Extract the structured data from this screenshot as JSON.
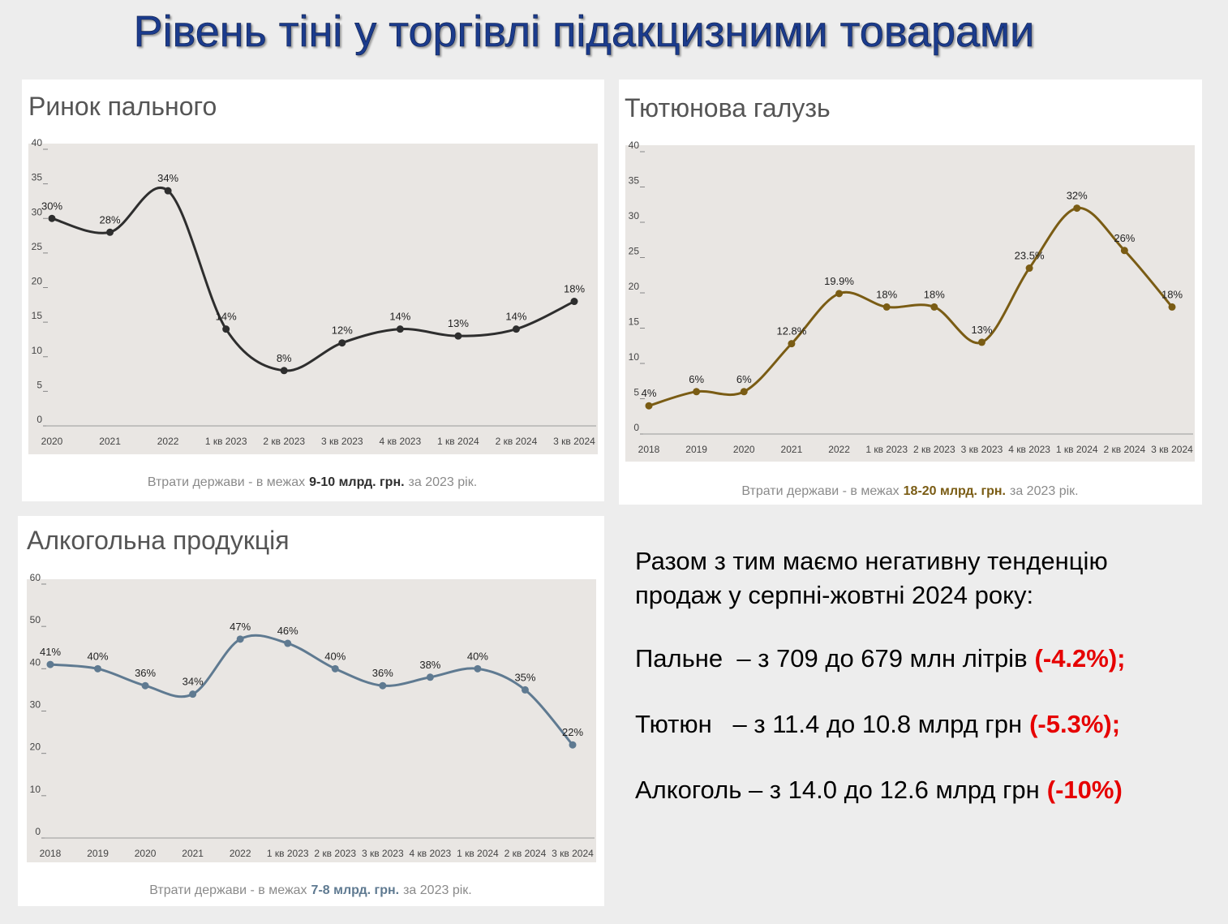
{
  "title": "Рівень тіні у торгівлі підакцизними товарами",
  "chart_data": [
    {
      "type": "line",
      "title": "Ринок пального",
      "categories": [
        "2020",
        "2021",
        "2022",
        "1 кв 2023",
        "2 кв 2023",
        "3 кв 2023",
        "4 кв 2023",
        "1 кв 2024",
        "2 кв 2024",
        "3 кв 2024"
      ],
      "values": [
        30,
        28,
        34,
        14,
        8,
        12,
        14,
        13,
        14,
        18
      ],
      "value_labels": [
        "30%",
        "28%",
        "34%",
        "14%",
        "8%",
        "12%",
        "14%",
        "13%",
        "14%",
        "18%"
      ],
      "color": "#2e2e2e",
      "ylim": [
        0,
        40
      ],
      "yticks": [
        0,
        5,
        10,
        15,
        20,
        25,
        30,
        35,
        40
      ],
      "caption": {
        "prefix": "Втрати держави - в межах",
        "highlight": "9-10 млрд. грн.",
        "suffix": "за 2023 рік."
      }
    },
    {
      "type": "line",
      "title": "Тютюнова галузь",
      "categories": [
        "2018",
        "2019",
        "2020",
        "2021",
        "2022",
        "1 кв 2023",
        "2 кв 2023",
        "3 кв 2023",
        "4 кв 2023",
        "1 кв 2024",
        "2 кв 2024",
        "3 кв 2024"
      ],
      "values": [
        4,
        6,
        6,
        12.8,
        19.9,
        18,
        18,
        13,
        23.5,
        32,
        26,
        18
      ],
      "value_labels": [
        "4%",
        "6%",
        "6%",
        "12.8%",
        "19.9%",
        "18%",
        "18%",
        "13%",
        "23.5%",
        "32%",
        "26%",
        "18%"
      ],
      "color": "#7a5c14",
      "ylim": [
        0,
        40
      ],
      "yticks": [
        0,
        5,
        10,
        15,
        20,
        25,
        30,
        35,
        40
      ],
      "caption": {
        "prefix": "Втрати держави - в межах",
        "highlight": "18-20 млрд. грн.",
        "suffix": "за 2023 рік."
      }
    },
    {
      "type": "line",
      "title": "Алкогольна продукція",
      "categories": [
        "2018",
        "2019",
        "2020",
        "2021",
        "2022",
        "1 кв 2023",
        "2 кв 2023",
        "3 кв 2023",
        "4 кв 2023",
        "1 кв 2024",
        "2 кв 2024",
        "3 кв 2024"
      ],
      "values": [
        41,
        40,
        36,
        34,
        47,
        46,
        40,
        36,
        38,
        40,
        35,
        22
      ],
      "value_labels": [
        "41%",
        "40%",
        "36%",
        "34%",
        "47%",
        "46%",
        "40%",
        "36%",
        "38%",
        "40%",
        "35%",
        "22%"
      ],
      "color": "#5f7a91",
      "ylim": [
        0,
        60
      ],
      "yticks": [
        0,
        10,
        20,
        30,
        40,
        50,
        60
      ],
      "caption": {
        "prefix": "Втрати держави - в межах",
        "highlight": "7-8 млрд. грн.",
        "suffix": "за 2023 рік."
      }
    }
  ],
  "summary": {
    "intro": [
      "Разом з тим маємо негативну тенденцію",
      "продаж у серпні-жовтні 2024 року:"
    ],
    "items": [
      {
        "text": "Пальне  – з 709 до 679 млн літрів",
        "change": "(-4.2%);"
      },
      {
        "text": "Тютюн   – з 11.4 до 10.8 млрд грн",
        "change": "(-5.3%);"
      },
      {
        "text": "Алкоголь – з 14.0 до 12.6 млрд грн",
        "change": "(-10%)"
      }
    ]
  }
}
